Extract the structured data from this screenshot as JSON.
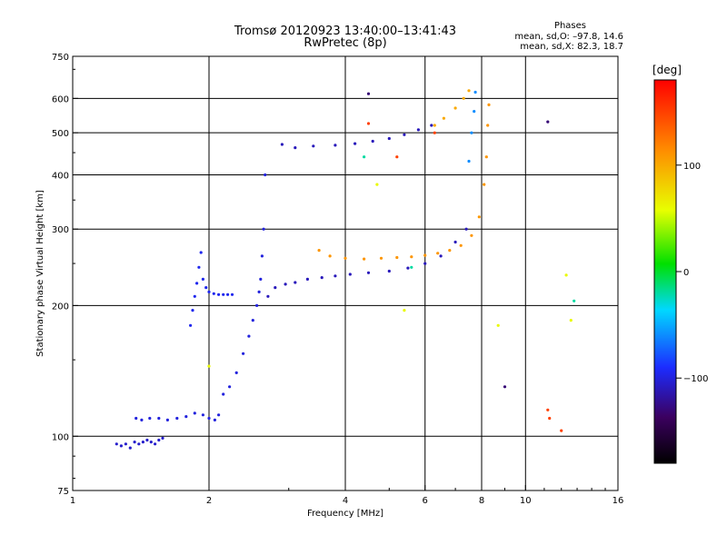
{
  "header": {
    "title_line1": "Tromsø 20120923 13:40:00–13:41:43",
    "title_line2": "RwPretec (8p)",
    "phase_heading": "Phases",
    "phase_line1": "mean, sd,O: –97.8, 14.6",
    "phase_line2": "mean, sd,X:  82.3, 18.7"
  },
  "chart_data": {
    "type": "scatter",
    "xlabel": "Frequency [MHz]",
    "ylabel": "Stationary phase Virtual Height [km]",
    "x_scale": "log",
    "y_scale": "log",
    "xlim": [
      1,
      16
    ],
    "ylim": [
      75,
      750
    ],
    "x_ticks": [
      1,
      2,
      4,
      6,
      8,
      10,
      16
    ],
    "y_ticks": [
      75,
      100,
      200,
      300,
      400,
      500,
      600,
      750
    ],
    "grid": true,
    "colorbar": {
      "label": "[deg]",
      "range": [
        -180,
        180
      ],
      "ticks": [
        100,
        0,
        -100
      ]
    },
    "series": [
      {
        "phase": -105,
        "x": [
          1.25,
          1.28,
          1.31,
          1.34,
          1.37,
          1.4,
          1.43,
          1.46,
          1.49,
          1.52,
          1.55,
          1.58
        ],
        "y": [
          96,
          95,
          96,
          94,
          97,
          96,
          97,
          98,
          97,
          96,
          98,
          99
        ]
      },
      {
        "phase": -100,
        "x": [
          1.38,
          1.42,
          1.48,
          1.55,
          1.62,
          1.7,
          1.78,
          1.86,
          1.94,
          2.0,
          2.06,
          2.1
        ],
        "y": [
          110,
          109,
          110,
          110,
          109,
          110,
          111,
          113,
          112,
          110,
          109,
          112
        ]
      },
      {
        "phase": -95,
        "x": [
          1.82,
          1.84,
          1.86,
          1.88,
          1.9,
          1.92,
          1.94,
          1.97,
          2.0,
          2.05,
          2.1,
          2.15,
          2.2,
          2.25
        ],
        "y": [
          180,
          195,
          210,
          225,
          245,
          265,
          230,
          220,
          215,
          213,
          212,
          212,
          212,
          212
        ]
      },
      {
        "phase": -100,
        "x": [
          2.15,
          2.22,
          2.3,
          2.38,
          2.45,
          2.5,
          2.55,
          2.58,
          2.6,
          2.62,
          2.64,
          2.66
        ],
        "y": [
          125,
          130,
          140,
          155,
          170,
          185,
          200,
          215,
          230,
          260,
          300,
          400
        ]
      },
      {
        "phase": -110,
        "x": [
          2.7,
          2.8,
          2.95,
          3.1,
          3.3,
          3.55,
          3.8,
          4.1,
          4.5,
          5.0,
          5.5,
          6.0,
          6.5,
          7.0,
          7.4
        ],
        "y": [
          210,
          220,
          224,
          226,
          230,
          232,
          234,
          236,
          238,
          240,
          244,
          250,
          260,
          280,
          300
        ]
      },
      {
        "phase": -110,
        "x": [
          2.9,
          3.1,
          3.4,
          3.8,
          4.2,
          4.6,
          5.0,
          5.4,
          5.8,
          6.2
        ],
        "y": [
          470,
          462,
          466,
          468,
          472,
          478,
          485,
          495,
          508,
          520
        ]
      },
      {
        "phase": 110,
        "x": [
          3.5,
          3.7,
          4.0,
          4.4,
          4.8,
          5.2,
          5.6,
          6.0,
          6.4,
          6.8,
          7.2,
          7.6,
          7.9,
          8.1,
          8.2,
          8.25,
          8.3
        ],
        "y": [
          268,
          260,
          257,
          256,
          257,
          258,
          259,
          261,
          264,
          268,
          275,
          290,
          320,
          380,
          440,
          520,
          580
        ]
      },
      {
        "phase": 100,
        "x": [
          6.3,
          6.6,
          7.0,
          7.3,
          7.5
        ],
        "y": [
          520,
          540,
          570,
          600,
          625
        ]
      },
      {
        "phase": -60,
        "x": [
          7.5,
          7.6,
          7.7,
          7.75
        ],
        "y": [
          430,
          500,
          560,
          620
        ]
      },
      {
        "phase": 150,
        "x": [
          4.5,
          5.2,
          6.3,
          11.2,
          11.3,
          12.0
        ],
        "y": [
          525,
          440,
          500,
          115,
          110,
          103
        ]
      },
      {
        "phase": 60,
        "x": [
          2.0,
          4.7,
          5.4,
          8.7,
          12.3,
          12.6
        ],
        "y": [
          145,
          380,
          195,
          180,
          235,
          185
        ]
      },
      {
        "phase": -20,
        "x": [
          5.6,
          4.4,
          12.8
        ],
        "y": [
          245,
          440,
          205
        ]
      },
      {
        "phase": -130,
        "x": [
          4.5,
          9.0,
          11.2
        ],
        "y": [
          615,
          130,
          530
        ]
      }
    ]
  }
}
